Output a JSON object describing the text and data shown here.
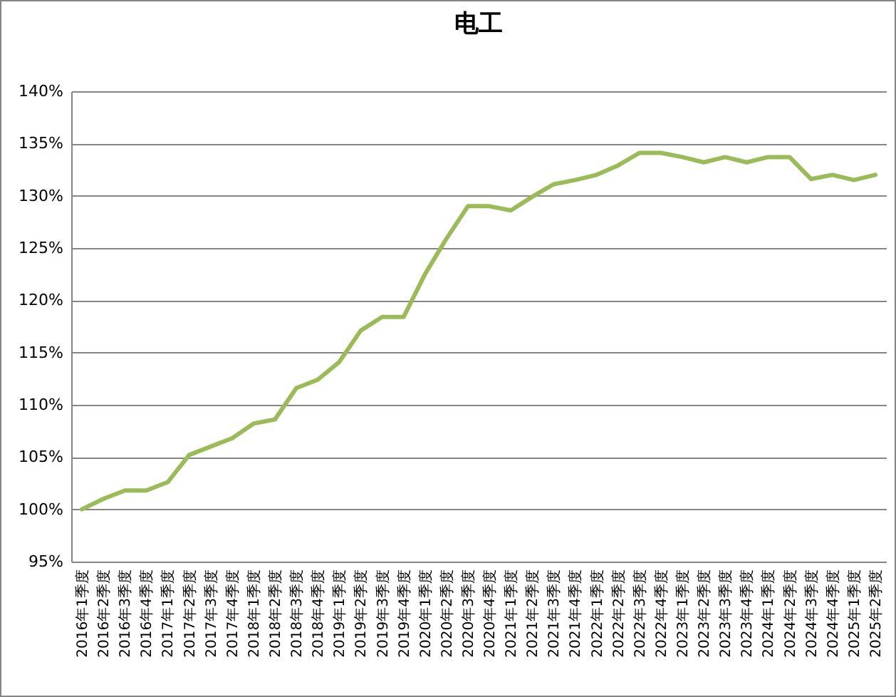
{
  "chart_data": {
    "type": "line",
    "title": "电工",
    "categories": [
      "2016年1季度",
      "2016年2季度",
      "2016年3季度",
      "2016年4季度",
      "2017年1季度",
      "2017年2季度",
      "2017年3季度",
      "2017年4季度",
      "2018年1季度",
      "2018年2季度",
      "2018年3季度",
      "2018年4季度",
      "2019年1季度",
      "2019年2季度",
      "2019年3季度",
      "2019年4季度",
      "2020年1季度",
      "2020年2季度",
      "2020年3季度",
      "2020年4季度",
      "2021年1季度",
      "2021年2季度",
      "2021年3季度",
      "2021年4季度",
      "2022年1季度",
      "2022年2季度",
      "2022年3季度",
      "2022年4季度",
      "2023年1季度",
      "2023年2季度",
      "2023年3季度",
      "2023年4季度",
      "2024年1季度",
      "2024年2季度",
      "2024年3季度",
      "2024年4季度",
      "2025年1季度",
      "2025年2季度"
    ],
    "series": [
      {
        "color": "#9bbb59",
        "values": [
          100,
          101.0,
          101.8,
          101.8,
          102.6,
          105.2,
          106.0,
          106.8,
          108.2,
          108.6,
          111.6,
          112.4,
          114.1,
          117.1,
          118.4,
          118.4,
          122.5,
          125.9,
          129.0,
          129.0,
          128.6,
          129.9,
          131.1,
          131.5,
          132.0,
          132.9,
          134.1,
          134.1,
          133.7,
          133.2,
          133.7,
          133.2,
          133.7,
          133.7,
          131.6,
          132.0,
          131.5,
          132.0
        ]
      }
    ],
    "ylim": [
      95,
      140
    ],
    "yticks": [
      {
        "value": 95,
        "label": "95%"
      },
      {
        "value": 100,
        "label": "100%"
      },
      {
        "value": 105,
        "label": "105%"
      },
      {
        "value": 110,
        "label": "110%"
      },
      {
        "value": 115,
        "label": "115%"
      },
      {
        "value": 120,
        "label": "120%"
      },
      {
        "value": 125,
        "label": "125%"
      },
      {
        "value": 130,
        "label": "130%"
      },
      {
        "value": 135,
        "label": "135%"
      },
      {
        "value": 140,
        "label": "140%"
      }
    ],
    "grid": "y",
    "marker": "none",
    "line_style": "solid"
  }
}
